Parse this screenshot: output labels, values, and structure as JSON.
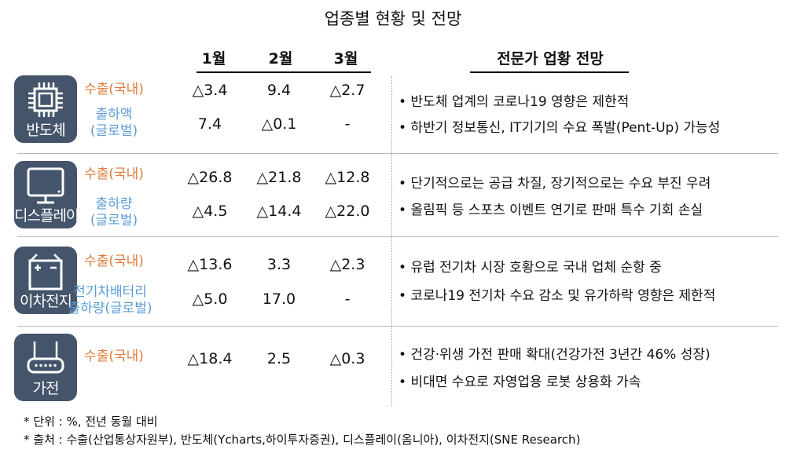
{
  "title": "업종별 현황 및 전망",
  "columns": {
    "months": [
      "1월",
      "2월",
      "3월"
    ],
    "outlook": "전문가 업황 전망"
  },
  "accent_colors": {
    "icon_bg": "#44546a",
    "domestic": "#e07b39",
    "global": "#5b9bd5"
  },
  "sections": [
    {
      "name": "반도체",
      "icon": "chip-icon",
      "rows": [
        {
          "label": "수출(국내)",
          "values": [
            "△3.4",
            "9.4",
            "△2.7"
          ]
        },
        {
          "label": "출하액(글로벌)",
          "label_lines": [
            "출하액",
            "(글로벌)"
          ],
          "values": [
            "7.4",
            "△0.1",
            "-"
          ]
        }
      ],
      "outlook": [
        "• 반도체 업계의 코로나19 영향은 제한적",
        "• 하반기 정보통신, IT기기의 수요 폭발(Pent-Up) 가능성"
      ]
    },
    {
      "name": "디스플레이",
      "icon": "monitor-icon",
      "rows": [
        {
          "label": "수출(국내)",
          "values": [
            "△26.8",
            "△21.8",
            "△12.8"
          ]
        },
        {
          "label": "출하량(글로벌)",
          "label_lines": [
            "출하량",
            "(글로벌)"
          ],
          "values": [
            "△4.5",
            "△14.4",
            "△22.0"
          ]
        }
      ],
      "outlook": [
        "• 단기적으로는 공급 차질, 장기적으로는 수요 부진 우려",
        "• 올림픽 등 스포츠 이벤트 연기로 판매 특수 기회 손실"
      ]
    },
    {
      "name": "이차전지",
      "icon": "battery-icon",
      "rows": [
        {
          "label": "수출(국내)",
          "values": [
            "△13.6",
            "3.3",
            "△2.3"
          ]
        },
        {
          "label": "전기차배터리 출하량(글로벌)",
          "label_lines": [
            "전기차배터리",
            "출하량(글로벌)"
          ],
          "values": [
            "△5.0",
            "17.0",
            "-"
          ]
        }
      ],
      "outlook": [
        "• 유럽 전기차 시장 호황으로 국내 업체 순항 중",
        "• 코로나19 전기차 수요 감소 및 유가하락 영향은 제한적"
      ]
    },
    {
      "name": "가전",
      "icon": "router-icon",
      "rows": [
        {
          "label": "수출(국내)",
          "values": [
            "△18.4",
            "2.5",
            "△0.3"
          ]
        }
      ],
      "outlook": [
        "• 건강·위생 가전 판매 확대(건강가전 3년간 46% 성장)",
        "• 비대면 수요로 자영업용 로봇 상용화 가속"
      ]
    }
  ],
  "notes": [
    "* 단위 : %, 전년 동월 대비",
    "* 출처 : 수출(산업통상자원부), 반도체(Ycharts,하이투자증권), 디스플레이(옴니아), 이차전지(SNE Research)"
  ]
}
